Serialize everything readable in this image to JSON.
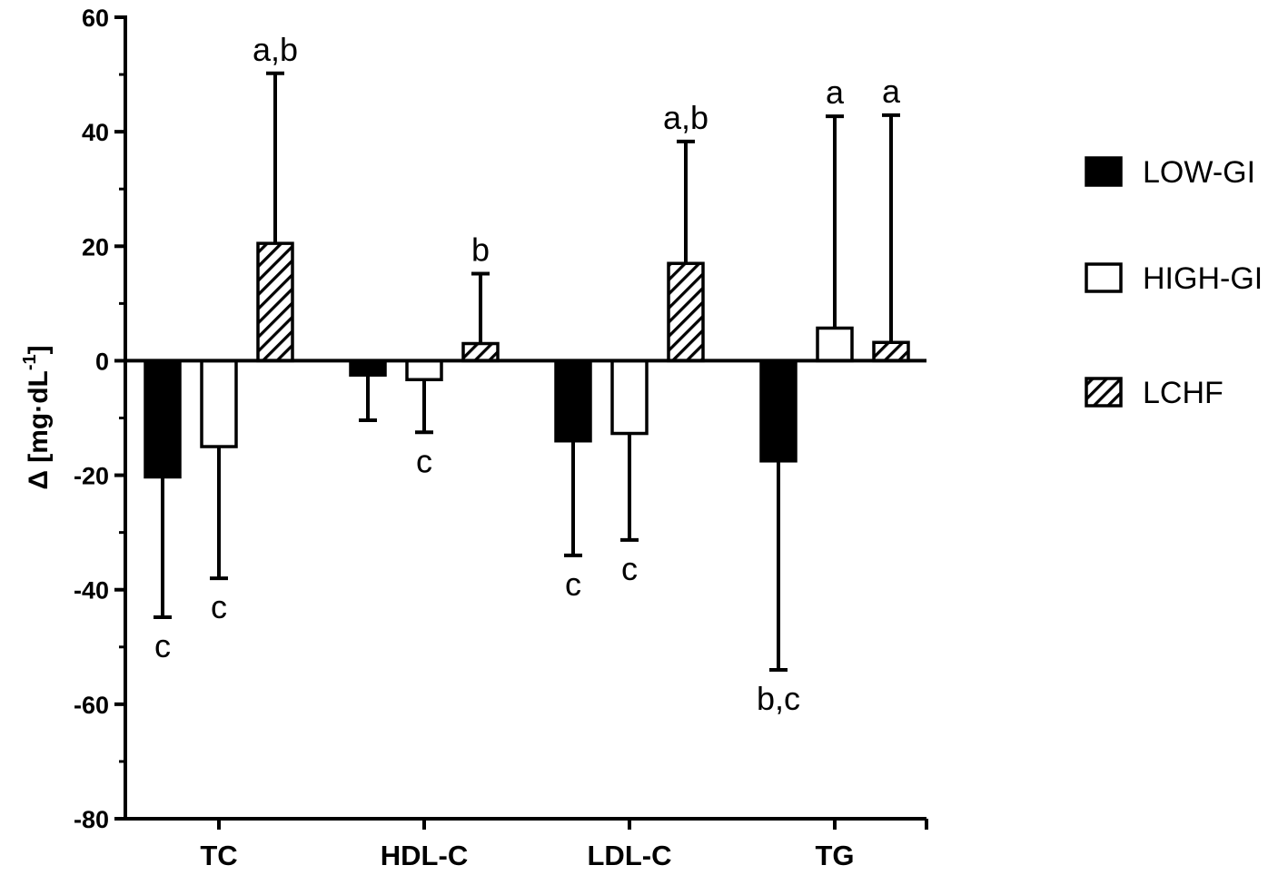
{
  "chart_data": {
    "type": "bar",
    "categories": [
      "TC",
      "HDL-C",
      "LDL-C",
      "TG"
    ],
    "series": [
      {
        "name": "LOW-GI",
        "fill": "solid",
        "color": "#000000",
        "values": [
          -20.3,
          -2.5,
          -14.0,
          -17.5
        ],
        "errors": [
          24.5,
          7.9,
          20.0,
          36.5
        ],
        "annotations": [
          "c",
          "",
          "c",
          "b,c"
        ]
      },
      {
        "name": "HIGH-GI",
        "fill": "open",
        "color": "#ffffff",
        "values": [
          -15.0,
          -3.3,
          -12.7,
          5.7
        ],
        "errors": [
          23.0,
          9.2,
          18.6,
          37.0
        ],
        "annotations": [
          "c",
          "c",
          "c",
          "a"
        ]
      },
      {
        "name": "LCHF",
        "fill": "hatched",
        "color": "#ffffff",
        "values": [
          20.5,
          3.0,
          17.0,
          3.2
        ],
        "errors": [
          29.7,
          12.2,
          21.3,
          39.7
        ],
        "annotations": [
          "a,b",
          "b",
          "a,b",
          "a"
        ]
      }
    ],
    "yticks": [
      "60",
      "40",
      "20",
      "0",
      "-20",
      "-40",
      "-60",
      "-80"
    ],
    "ylim": [
      -80,
      60
    ],
    "ylabel_main": "Δ [mg·dL",
    "ylabel_sup": "-1",
    "ylabel_end": "]",
    "xlabel": "",
    "legend_position": "right",
    "grid": false
  }
}
